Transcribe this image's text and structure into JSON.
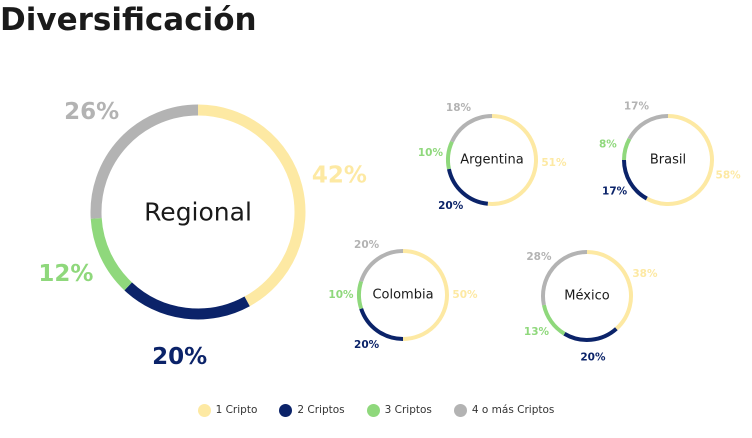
{
  "page": {
    "title": "Diversificación"
  },
  "colors": {
    "c1": "#fde9a3",
    "c2": "#0b2369",
    "c3": "#8fd87c",
    "c4": "#b3b3b3"
  },
  "legend": [
    {
      "label": "1 Cripto",
      "color": "#fde9a3"
    },
    {
      "label": "2 Criptos",
      "color": "#0b2369"
    },
    {
      "label": "3 Criptos",
      "color": "#8fd87c"
    },
    {
      "label": "4 o más Criptos",
      "color": "#b3b3b3"
    }
  ],
  "chart_data": {
    "type": "pie",
    "variant": "donut",
    "categories": [
      "1 Cripto",
      "2 Criptos",
      "3 Criptos",
      "4 o más Criptos"
    ],
    "legend_position": "bottom",
    "charts": [
      {
        "label": "Regional",
        "values": [
          42,
          20,
          12,
          26
        ],
        "value_labels": [
          "42%",
          "20%",
          "12%",
          "26%"
        ]
      },
      {
        "label": "Argentina",
        "values": [
          51,
          20,
          10,
          18
        ],
        "value_labels": [
          "51%",
          "20%",
          "10%",
          "18%"
        ]
      },
      {
        "label": "Brasil",
        "values": [
          58,
          17,
          8,
          17
        ],
        "value_labels": [
          "58%",
          "17%",
          "8%",
          "17%"
        ]
      },
      {
        "label": "Colombia",
        "values": [
          50,
          20,
          10,
          20
        ],
        "value_labels": [
          "50%",
          "20%",
          "10%",
          "20%"
        ]
      },
      {
        "label": "México",
        "values": [
          38,
          20,
          13,
          28
        ],
        "value_labels": [
          "38%",
          "20%",
          "13%",
          "28%"
        ]
      }
    ]
  }
}
